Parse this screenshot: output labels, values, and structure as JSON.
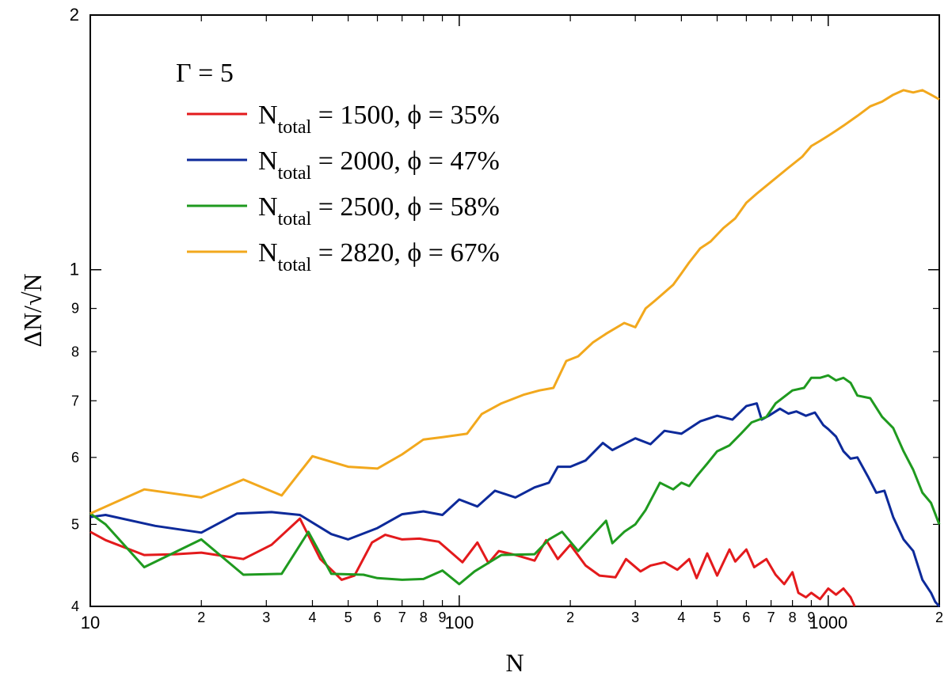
{
  "chart_data": {
    "type": "line",
    "xlabel": "N",
    "ylabel": "ΔN/√N",
    "xscale": "log",
    "yscale": "log",
    "xlim": [
      10,
      2000
    ],
    "ylim": [
      0.4,
      2
    ],
    "x_major_ticks": [
      {
        "value": 10,
        "label": "10"
      },
      {
        "value": 100,
        "label": "100"
      },
      {
        "value": 1000,
        "label": "1000"
      }
    ],
    "x_minor_ticks": [
      {
        "value": 20,
        "label": "2"
      },
      {
        "value": 30,
        "label": "3"
      },
      {
        "value": 40,
        "label": "4"
      },
      {
        "value": 50,
        "label": "5"
      },
      {
        "value": 60,
        "label": "6"
      },
      {
        "value": 70,
        "label": "7"
      },
      {
        "value": 80,
        "label": "8"
      },
      {
        "value": 90,
        "label": "9"
      },
      {
        "value": 200,
        "label": "2"
      },
      {
        "value": 300,
        "label": "3"
      },
      {
        "value": 400,
        "label": "4"
      },
      {
        "value": 500,
        "label": "5"
      },
      {
        "value": 600,
        "label": "6"
      },
      {
        "value": 700,
        "label": "7"
      },
      {
        "value": 800,
        "label": "8"
      },
      {
        "value": 900,
        "label": "9"
      },
      {
        "value": 2000,
        "label": "2"
      }
    ],
    "y_major_ticks": [
      {
        "value": 1,
        "label": "1"
      },
      {
        "value": 2,
        "label": "2"
      }
    ],
    "y_minor_ticks": [
      {
        "value": 0.4,
        "label": "4"
      },
      {
        "value": 0.5,
        "label": "5"
      },
      {
        "value": 0.6,
        "label": "6"
      },
      {
        "value": 0.7,
        "label": "7"
      },
      {
        "value": 0.8,
        "label": "8"
      },
      {
        "value": 0.9,
        "label": "9"
      }
    ],
    "legend": {
      "title": "Γ = 5",
      "placement": "top-left",
      "entries": [
        {
          "prefix": "N",
          "sub": "total",
          "rest": " = 1500, ϕ = 35%"
        },
        {
          "prefix": "N",
          "sub": "total",
          "rest": " = 2000, ϕ = 47%"
        },
        {
          "prefix": "N",
          "sub": "total",
          "rest": " = 2500, ϕ = 58%"
        },
        {
          "prefix": "N",
          "sub": "total",
          "rest": " = 2820, ϕ = 67%"
        }
      ]
    },
    "series": [
      {
        "color": "#e31a1c",
        "x": [
          10,
          11,
          14,
          17,
          20,
          26,
          31,
          37,
          42,
          46,
          48,
          52,
          58,
          63,
          70,
          78,
          88,
          102,
          112,
          120,
          128,
          142,
          160,
          172,
          185,
          200,
          220,
          240,
          265,
          283,
          310,
          330,
          360,
          390,
          420,
          440,
          470,
          500,
          540,
          560,
          600,
          630,
          680,
          720,
          760,
          800,
          830,
          870,
          900,
          950,
          1000,
          1050,
          1100,
          1150,
          1180
        ],
        "y": [
          0.49,
          0.479,
          0.46,
          0.461,
          0.463,
          0.455,
          0.473,
          0.508,
          0.455,
          0.438,
          0.43,
          0.435,
          0.476,
          0.486,
          0.48,
          0.481,
          0.477,
          0.451,
          0.476,
          0.45,
          0.465,
          0.46,
          0.453,
          0.479,
          0.455,
          0.473,
          0.447,
          0.435,
          0.433,
          0.455,
          0.44,
          0.447,
          0.451,
          0.442,
          0.455,
          0.432,
          0.462,
          0.435,
          0.467,
          0.452,
          0.467,
          0.445,
          0.455,
          0.436,
          0.425,
          0.439,
          0.415,
          0.41,
          0.415,
          0.408,
          0.42,
          0.413,
          0.42,
          0.41,
          0.4
        ]
      },
      {
        "color": "#0d2a9a",
        "x": [
          10,
          11,
          15,
          20,
          25,
          31,
          37,
          45,
          50,
          60,
          70,
          80,
          90,
          100,
          112,
          125,
          142,
          160,
          175,
          185,
          200,
          220,
          245,
          260,
          300,
          330,
          360,
          400,
          450,
          500,
          550,
          600,
          640,
          660,
          690,
          740,
          780,
          820,
          870,
          920,
          970,
          1000,
          1050,
          1100,
          1150,
          1200,
          1280,
          1350,
          1420,
          1500,
          1600,
          1700,
          1800,
          1900,
          1950,
          2000
        ],
        "y": [
          0.51,
          0.513,
          0.498,
          0.489,
          0.515,
          0.517,
          0.513,
          0.487,
          0.48,
          0.495,
          0.514,
          0.518,
          0.513,
          0.535,
          0.525,
          0.548,
          0.538,
          0.553,
          0.56,
          0.585,
          0.585,
          0.595,
          0.624,
          0.612,
          0.632,
          0.622,
          0.645,
          0.64,
          0.662,
          0.672,
          0.665,
          0.69,
          0.695,
          0.665,
          0.672,
          0.685,
          0.676,
          0.68,
          0.672,
          0.678,
          0.655,
          0.648,
          0.635,
          0.61,
          0.598,
          0.6,
          0.57,
          0.545,
          0.548,
          0.51,
          0.48,
          0.465,
          0.43,
          0.415,
          0.405,
          0.4
        ]
      },
      {
        "color": "#1f9a1f",
        "x": [
          10,
          11,
          14,
          20,
          26,
          33,
          39,
          45,
          55,
          60,
          70,
          80,
          90,
          100,
          110,
          130,
          160,
          175,
          190,
          210,
          250,
          260,
          280,
          300,
          320,
          350,
          380,
          400,
          420,
          440,
          470,
          500,
          540,
          580,
          620,
          680,
          720,
          800,
          860,
          900,
          950,
          1000,
          1050,
          1100,
          1150,
          1200,
          1300,
          1400,
          1500,
          1600,
          1700,
          1800,
          1900,
          2000
        ],
        "y": [
          0.515,
          0.5,
          0.445,
          0.48,
          0.436,
          0.437,
          0.49,
          0.437,
          0.436,
          0.432,
          0.43,
          0.431,
          0.441,
          0.425,
          0.44,
          0.46,
          0.461,
          0.48,
          0.49,
          0.465,
          0.505,
          0.475,
          0.49,
          0.5,
          0.52,
          0.56,
          0.55,
          0.56,
          0.555,
          0.57,
          0.59,
          0.61,
          0.62,
          0.64,
          0.66,
          0.67,
          0.695,
          0.72,
          0.725,
          0.745,
          0.745,
          0.75,
          0.74,
          0.745,
          0.735,
          0.71,
          0.705,
          0.67,
          0.65,
          0.61,
          0.58,
          0.545,
          0.53,
          0.5
        ]
      },
      {
        "color": "#f2a81d",
        "x": [
          10,
          14,
          20,
          26,
          33,
          40,
          50,
          60,
          70,
          80,
          90,
          105,
          115,
          130,
          150,
          165,
          180,
          195,
          210,
          230,
          250,
          280,
          300,
          320,
          340,
          360,
          380,
          400,
          420,
          450,
          480,
          520,
          560,
          600,
          640,
          700,
          780,
          850,
          900,
          950,
          1000,
          1050,
          1100,
          1200,
          1300,
          1400,
          1500,
          1600,
          1700,
          1800,
          1900,
          2000
        ],
        "y": [
          0.515,
          0.55,
          0.538,
          0.565,
          0.541,
          0.602,
          0.585,
          0.582,
          0.605,
          0.63,
          0.634,
          0.64,
          0.675,
          0.695,
          0.712,
          0.72,
          0.725,
          0.78,
          0.79,
          0.82,
          0.84,
          0.865,
          0.855,
          0.9,
          0.92,
          0.94,
          0.96,
          0.99,
          1.02,
          1.06,
          1.08,
          1.12,
          1.15,
          1.2,
          1.23,
          1.27,
          1.32,
          1.36,
          1.4,
          1.42,
          1.44,
          1.46,
          1.48,
          1.52,
          1.56,
          1.58,
          1.61,
          1.63,
          1.62,
          1.63,
          1.61,
          1.59
        ]
      }
    ]
  }
}
